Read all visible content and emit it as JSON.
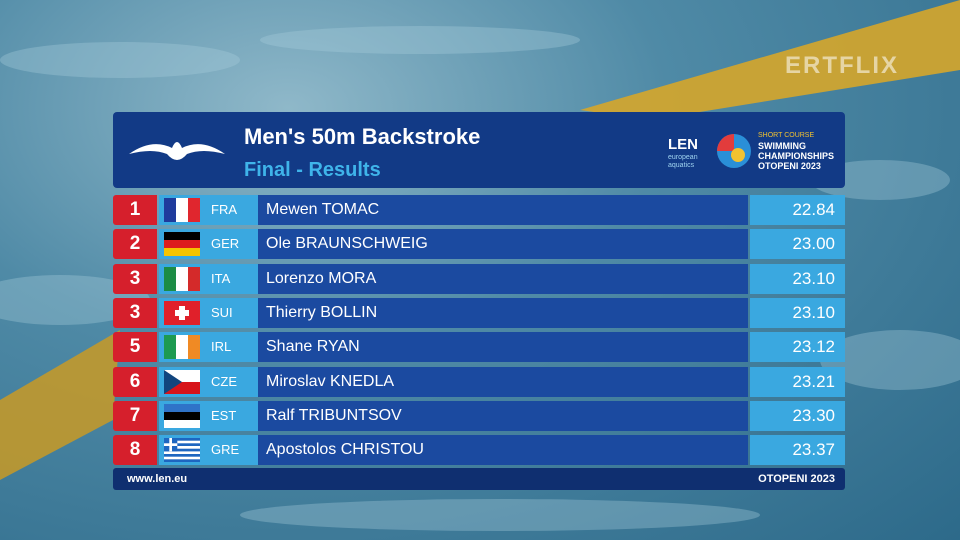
{
  "watermark": "ERTFLIX",
  "header": {
    "title": "Men's 50m Backstroke",
    "subtitle": "Final - Results",
    "logo": {
      "brand": "LEN",
      "brand_sub": "european aquatics",
      "line1": "SHORT COURSE",
      "line2": "SWIMMING",
      "line3": "CHAMPIONSHIPS",
      "line4": "OTOPENI 2023"
    }
  },
  "table": {
    "rows": [
      [
        "1",
        "FRA",
        "Mewen TOMAC",
        "22.84"
      ],
      [
        "2",
        "GER",
        "Ole BRAUNSCHWEIG",
        "23.00"
      ],
      [
        "3",
        "ITA",
        "Lorenzo MORA",
        "23.10"
      ],
      [
        "3",
        "SUI",
        "Thierry BOLLIN",
        "23.10"
      ],
      [
        "5",
        "IRL",
        "Shane RYAN",
        "23.12"
      ],
      [
        "6",
        "CZE",
        "Miroslav KNEDLA",
        "23.21"
      ],
      [
        "7",
        "EST",
        "Ralf TRIBUNTSOV",
        "23.30"
      ],
      [
        "8",
        "GRE",
        "Apostolos CHRISTOU",
        "23.37"
      ]
    ]
  },
  "footer": {
    "left": "www.len.eu",
    "right": "OTOPENI 2023"
  }
}
